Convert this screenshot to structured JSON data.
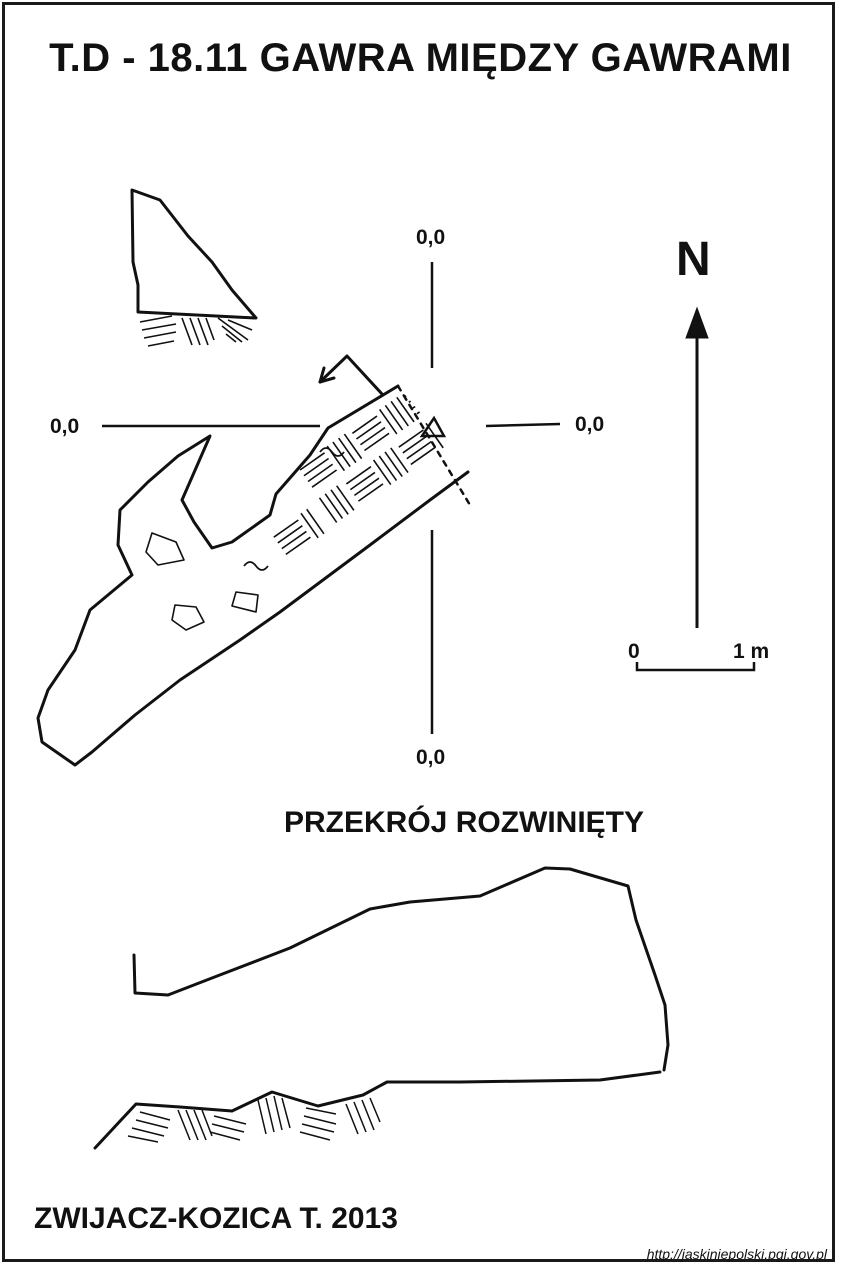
{
  "title": "T.D - 18.11  GAWRA MIĘDZY GAWRAMI",
  "grid_labels": {
    "top": "0,0",
    "left": "0,0",
    "right": "0,0",
    "bottom": "0,0"
  },
  "north_arrow": {
    "label": "N",
    "icon": "north-arrow-icon"
  },
  "scale_bar": {
    "start_label": "0",
    "end_label": "1 m",
    "length_m": 1
  },
  "section_title": "PRZEKRÓJ ROZWINIĘTY",
  "author": "ZWIJACZ-KOZICA T. 2013",
  "source_url": "http://jaskiniepolski.pgi.gov.pl",
  "colors": {
    "ink": "#111111",
    "background": "#ffffff"
  }
}
